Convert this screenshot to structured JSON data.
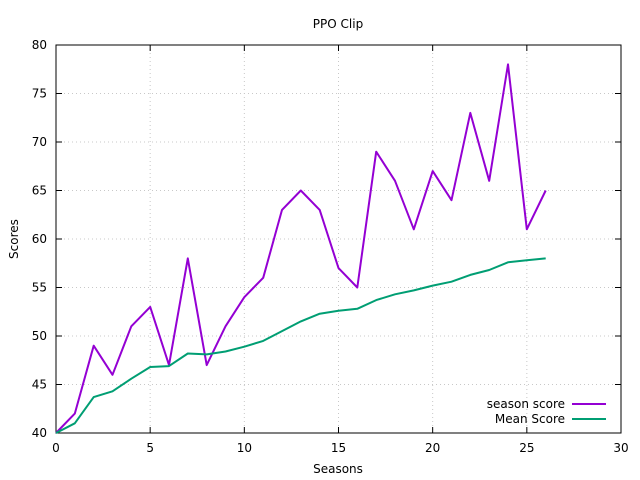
{
  "chart_data": {
    "type": "line",
    "title": "PPO Clip",
    "xlabel": "Seasons",
    "ylabel": "Scores",
    "xlim": [
      0,
      30
    ],
    "ylim": [
      40,
      80
    ],
    "xticks": [
      0,
      5,
      10,
      15,
      20,
      25,
      30
    ],
    "yticks": [
      40,
      45,
      50,
      55,
      60,
      65,
      70,
      75,
      80
    ],
    "grid": true,
    "legend_position": "bottom-right",
    "x": [
      0,
      1,
      2,
      3,
      4,
      5,
      6,
      7,
      8,
      9,
      10,
      11,
      12,
      13,
      14,
      15,
      16,
      17,
      18,
      19,
      20,
      21,
      22,
      23,
      24,
      25,
      26
    ],
    "series": [
      {
        "name": "season score",
        "color": "#9400d3",
        "values": [
          40,
          42,
          49,
          46,
          51,
          53,
          47,
          58,
          47,
          51,
          54,
          56,
          63,
          65,
          63,
          57,
          55,
          69,
          66,
          61,
          67,
          64,
          73,
          66,
          78,
          61,
          65
        ]
      },
      {
        "name": "Mean Score",
        "color": "#009e73",
        "values": [
          40,
          41,
          43.7,
          44.3,
          45.6,
          46.8,
          46.9,
          48.2,
          48.1,
          48.4,
          48.9,
          49.5,
          50.5,
          51.5,
          52.3,
          52.6,
          52.8,
          53.7,
          54.3,
          54.7,
          55.2,
          55.6,
          56.3,
          56.8,
          57.6,
          57.8,
          58.0
        ]
      }
    ]
  }
}
